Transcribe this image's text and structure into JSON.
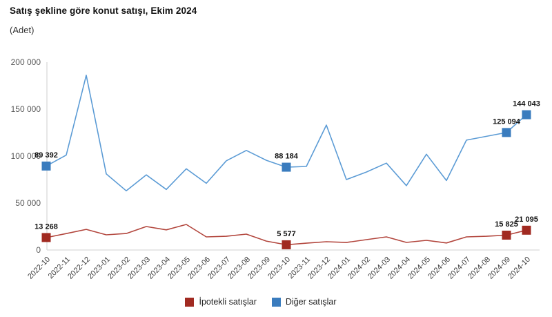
{
  "header": {
    "title": "Satış şekline göre konut satışı, Ekim 2024",
    "subtitle": "(Adet)"
  },
  "legend": {
    "items": [
      {
        "label": "İpotekli satışlar",
        "color": "#a12a21"
      },
      {
        "label": "Diğer satışlar",
        "color": "#3a7cbe"
      }
    ]
  },
  "colors": {
    "axis_line": "#d9d9d9",
    "y_tick_text": "#595959",
    "x_tick_text": "#3d3d3d",
    "data_label_text": "#111111"
  },
  "chart_data": {
    "type": "line",
    "title": "Satış şekline göre konut satışı, Ekim 2024",
    "ylabel": "Adet",
    "ylim": [
      0,
      200000
    ],
    "grid": false,
    "legend_position": "bottom",
    "y_ticks": [
      {
        "value": 0,
        "label": "0"
      },
      {
        "value": 50000,
        "label": "50 000"
      },
      {
        "value": 100000,
        "label": "100 000"
      },
      {
        "value": 150000,
        "label": "150 000"
      },
      {
        "value": 200000,
        "label": "200 000"
      }
    ],
    "categories": [
      "2022-10",
      "2022-11",
      "2022-12",
      "2023-01",
      "2023-02",
      "2023-03",
      "2023-04",
      "2023-05",
      "2023-06",
      "2023-07",
      "2023-08",
      "2023-09",
      "2023-10",
      "2023-11",
      "2023-12",
      "2024-01",
      "2024-02",
      "2024-03",
      "2024-04",
      "2024-05",
      "2024-06",
      "2024-07",
      "2024-08",
      "2024-09",
      "2024-10"
    ],
    "series": [
      {
        "name": "İpotekli satışlar",
        "line_color": "#b2453c",
        "marker_color": "#a12a21",
        "values": [
          13268,
          17500,
          22000,
          16200,
          17600,
          25000,
          21500,
          27200,
          14000,
          14600,
          16900,
          9500,
          5577,
          7300,
          8800,
          8000,
          11000,
          14000,
          8100,
          10300,
          7500,
          14000,
          14600,
          15825,
          21095
        ],
        "labeled_points": [
          {
            "index": 0,
            "label": "13 268"
          },
          {
            "index": 12,
            "label": "5 577"
          },
          {
            "index": 23,
            "label": "15 825"
          },
          {
            "index": 24,
            "label": "21 095"
          }
        ]
      },
      {
        "name": "Diğer satışlar",
        "line_color": "#5b9bd5",
        "marker_color": "#3a7cbe",
        "values": [
          89392,
          101000,
          186000,
          81000,
          63000,
          80000,
          64500,
          86500,
          71000,
          95000,
          106000,
          95500,
          88184,
          89000,
          133000,
          75000,
          83000,
          92500,
          68500,
          102000,
          74000,
          117000,
          121000,
          125094,
          144043
        ],
        "labeled_points": [
          {
            "index": 0,
            "label": "89 392"
          },
          {
            "index": 12,
            "label": "88 184"
          },
          {
            "index": 23,
            "label": "125 094"
          },
          {
            "index": 24,
            "label": "144 043"
          }
        ]
      }
    ]
  }
}
